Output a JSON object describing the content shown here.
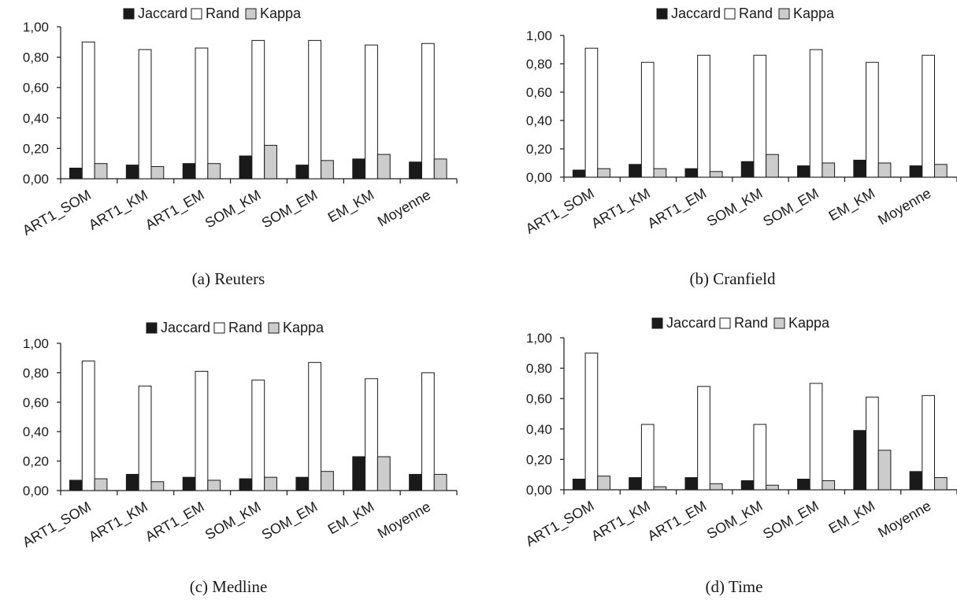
{
  "colors": {
    "jaccard": "#1a1a1a",
    "rand": "#ffffff",
    "kappa": "#cccccc",
    "stroke": "#1a1a1a"
  },
  "legend_entries": [
    "Jaccard",
    "Rand",
    "Kappa"
  ],
  "chart_data": [
    {
      "type": "bar",
      "panel": "a",
      "caption": "(a) Reuters",
      "categories": [
        "ART1_SOM",
        "ART1_KM",
        "ART1_EM",
        "SOM_KM",
        "SOM_EM",
        "EM_KM",
        "Moyenne"
      ],
      "series": [
        {
          "name": "Jaccard",
          "values": [
            0.07,
            0.09,
            0.1,
            0.15,
            0.09,
            0.13,
            0.11
          ]
        },
        {
          "name": "Rand",
          "values": [
            0.9,
            0.85,
            0.86,
            0.91,
            0.91,
            0.88,
            0.89
          ]
        },
        {
          "name": "Kappa",
          "values": [
            0.1,
            0.08,
            0.1,
            0.22,
            0.12,
            0.16,
            0.13
          ]
        }
      ],
      "ylim": [
        0,
        1
      ],
      "yticks": [
        "0,00",
        "0,20",
        "0,40",
        "0,60",
        "0,80",
        "1,00"
      ],
      "legend": "top"
    },
    {
      "type": "bar",
      "panel": "b",
      "caption": "(b) Cranfield",
      "categories": [
        "ART1_SOM",
        "ART1_KM",
        "ART1_EM",
        "SOM_KM",
        "SOM_EM",
        "EM_KM",
        "Moyenne"
      ],
      "series": [
        {
          "name": "Jaccard",
          "values": [
            0.05,
            0.09,
            0.06,
            0.11,
            0.08,
            0.12,
            0.08
          ]
        },
        {
          "name": "Rand",
          "values": [
            0.91,
            0.81,
            0.86,
            0.86,
            0.9,
            0.81,
            0.86
          ]
        },
        {
          "name": "Kappa",
          "values": [
            0.06,
            0.06,
            0.04,
            0.16,
            0.1,
            0.1,
            0.09
          ]
        }
      ],
      "ylim": [
        0,
        1
      ],
      "yticks": [
        "0,00",
        "0,20",
        "0,40",
        "0,60",
        "0,80",
        "1,00"
      ],
      "legend": "top"
    },
    {
      "type": "bar",
      "panel": "c",
      "caption": "(c) Medline",
      "categories": [
        "ART1_SOM",
        "ART1_KM",
        "ART1_EM",
        "SOM_KM",
        "SOM_EM",
        "EM_KM",
        "Moyenne"
      ],
      "series": [
        {
          "name": "Jaccard",
          "values": [
            0.07,
            0.11,
            0.09,
            0.08,
            0.09,
            0.23,
            0.11
          ]
        },
        {
          "name": "Rand",
          "values": [
            0.88,
            0.71,
            0.81,
            0.75,
            0.87,
            0.76,
            0.8
          ]
        },
        {
          "name": "Kappa",
          "values": [
            0.08,
            0.06,
            0.07,
            0.09,
            0.13,
            0.23,
            0.11
          ]
        }
      ],
      "ylim": [
        0,
        1
      ],
      "yticks": [
        "0,00",
        "0,20",
        "0,40",
        "0,60",
        "0,80",
        "1,00"
      ],
      "legend": "top"
    },
    {
      "type": "bar",
      "panel": "d",
      "caption": "(d) Time",
      "categories": [
        "ART1_SOM",
        "ART1_KM",
        "ART1_EM",
        "SOM_KM",
        "SOM_EM",
        "EM_KM",
        "Moyenne"
      ],
      "series": [
        {
          "name": "Jaccard",
          "values": [
            0.07,
            0.08,
            0.08,
            0.06,
            0.07,
            0.39,
            0.12
          ]
        },
        {
          "name": "Rand",
          "values": [
            0.9,
            0.43,
            0.68,
            0.43,
            0.7,
            0.61,
            0.62
          ]
        },
        {
          "name": "Kappa",
          "values": [
            0.09,
            0.02,
            0.04,
            0.03,
            0.06,
            0.26,
            0.08
          ]
        }
      ],
      "ylim": [
        0,
        1
      ],
      "yticks": [
        "0,00",
        "0,20",
        "0,40",
        "0,60",
        "0,80",
        "1,00"
      ],
      "legend": "top"
    }
  ]
}
